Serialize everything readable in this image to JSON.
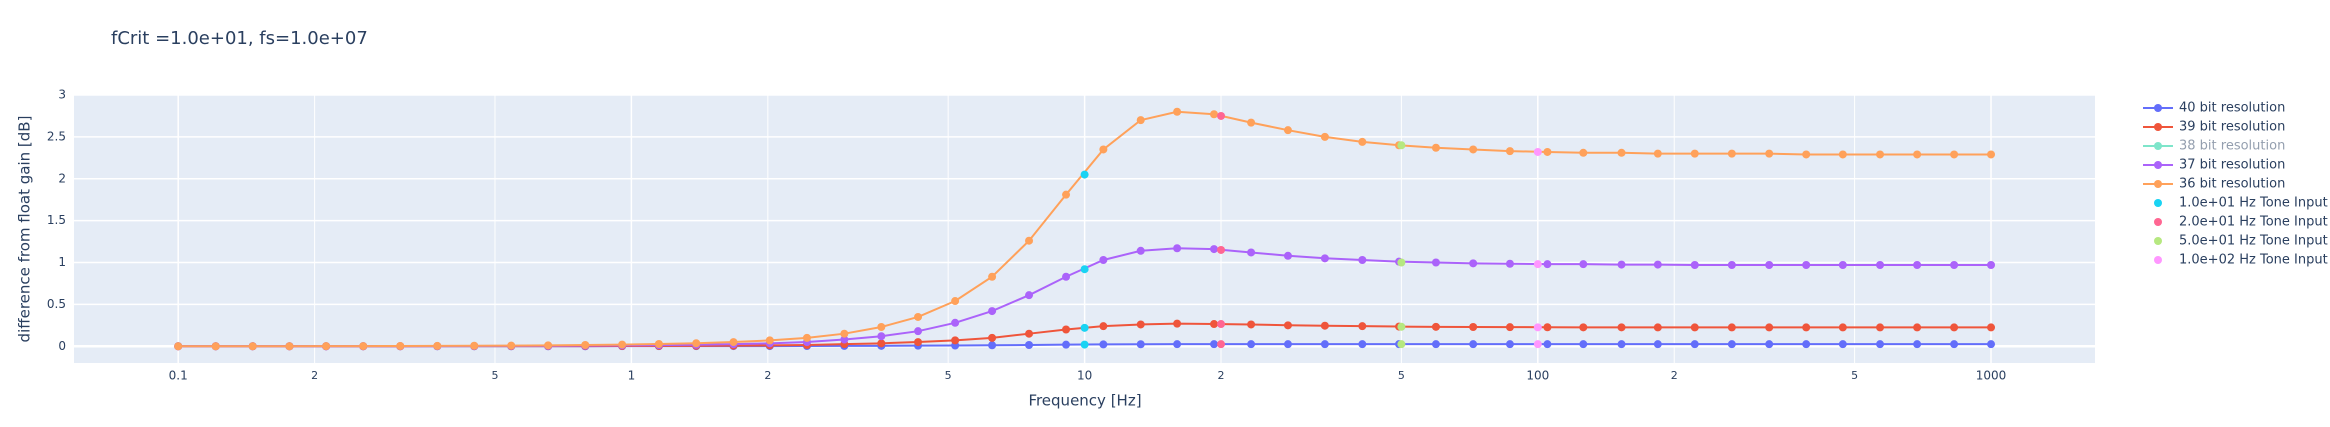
{
  "chart_data": {
    "type": "line",
    "title": "fCrit =1.0e+01, fs=1.0e+07",
    "x_label": "Frequency [Hz]",
    "y_label": "difference from float gain [dB]",
    "xlog": true,
    "grid": true,
    "legend": "right",
    "background": "#e5ecf6",
    "xlim": [
      0.0589,
      1696
    ],
    "ylim": [
      -0.2,
      3.0
    ],
    "xticks": [
      0.1,
      {
        "value": 0.2,
        "label": "2"
      },
      {
        "value": 0.5,
        "label": "5"
      },
      1,
      {
        "value": 2,
        "label": "2"
      },
      {
        "value": 5,
        "label": "5"
      },
      10,
      {
        "value": 20,
        "label": "2"
      },
      {
        "value": 50,
        "label": "5"
      },
      100,
      {
        "value": 200,
        "label": "2"
      },
      {
        "value": 500,
        "label": "5"
      },
      1000
    ],
    "yticks": [
      0,
      0.5,
      1,
      1.5,
      2,
      2.5,
      3
    ],
    "x": [
      0.1,
      0.121,
      0.146,
      0.176,
      0.212,
      0.256,
      0.309,
      0.373,
      0.45,
      0.543,
      0.655,
      0.791,
      0.954,
      1.15,
      1.39,
      1.68,
      2.02,
      2.44,
      2.95,
      3.56,
      4.29,
      5.18,
      6.25,
      7.54,
      9.1,
      11.0,
      13.3,
      16.0,
      19.3,
      23.3,
      28.1,
      33.9,
      41.0,
      49.4,
      59.6,
      72.0,
      86.8,
      105,
      126,
      153,
      184,
      222,
      268,
      324,
      391,
      471,
      569,
      687,
      829,
      1000
    ],
    "series": [
      {
        "name": "40 bit resolution",
        "color": "#636efa",
        "mode": "lines+markers",
        "values": [
          0,
          0,
          0,
          0,
          0,
          0,
          0,
          0,
          0,
          0,
          0,
          0,
          0.001,
          0.001,
          0.001,
          0.002,
          0.002,
          0.003,
          0.004,
          0.005,
          0.007,
          0.009,
          0.012,
          0.015,
          0.019,
          0.022,
          0.024,
          0.025,
          0.025,
          0.025,
          0.025,
          0.025,
          0.025,
          0.025,
          0.025,
          0.025,
          0.025,
          0.025,
          0.025,
          0.025,
          0.025,
          0.025,
          0.025,
          0.025,
          0.025,
          0.025,
          0.025,
          0.025,
          0.025,
          0.025
        ]
      },
      {
        "name": "39 bit resolution",
        "color": "#ef553b",
        "mode": "lines+markers",
        "values": [
          0,
          0,
          0,
          0,
          0,
          0,
          0,
          0.001,
          0.001,
          0.001,
          0.002,
          0.002,
          0.003,
          0.004,
          0.005,
          0.007,
          0.01,
          0.015,
          0.025,
          0.035,
          0.05,
          0.07,
          0.1,
          0.15,
          0.2,
          0.24,
          0.26,
          0.27,
          0.265,
          0.26,
          0.25,
          0.245,
          0.24,
          0.235,
          0.232,
          0.23,
          0.228,
          0.227,
          0.226,
          0.226,
          0.225,
          0.225,
          0.225,
          0.225,
          0.225,
          0.225,
          0.225,
          0.225,
          0.225,
          0.225
        ]
      },
      {
        "name": "38 bit resolution",
        "color": "#00cc96",
        "mode": "lines+markers",
        "visible": "legendonly"
      },
      {
        "name": "37 bit resolution",
        "color": "#ab63fa",
        "mode": "lines+markers",
        "values": [
          0,
          0,
          0,
          0,
          0,
          0.001,
          0.001,
          0.002,
          0.003,
          0.004,
          0.005,
          0.007,
          0.01,
          0.013,
          0.018,
          0.025,
          0.035,
          0.05,
          0.08,
          0.12,
          0.18,
          0.28,
          0.42,
          0.61,
          0.83,
          1.03,
          1.14,
          1.17,
          1.16,
          1.12,
          1.08,
          1.05,
          1.03,
          1.01,
          1.0,
          0.99,
          0.985,
          0.98,
          0.98,
          0.975,
          0.975,
          0.97,
          0.97,
          0.97,
          0.97,
          0.97,
          0.97,
          0.97,
          0.97,
          0.97
        ]
      },
      {
        "name": "36 bit resolution",
        "color": "#ffa15a",
        "mode": "lines+markers",
        "values": [
          0,
          0,
          0,
          0,
          0.001,
          0.002,
          0.003,
          0.004,
          0.006,
          0.008,
          0.011,
          0.015,
          0.02,
          0.027,
          0.036,
          0.05,
          0.07,
          0.1,
          0.15,
          0.23,
          0.35,
          0.54,
          0.83,
          1.26,
          1.81,
          2.35,
          2.7,
          2.8,
          2.77,
          2.67,
          2.58,
          2.5,
          2.44,
          2.4,
          2.37,
          2.35,
          2.33,
          2.32,
          2.31,
          2.31,
          2.3,
          2.3,
          2.3,
          2.3,
          2.29,
          2.29,
          2.29,
          2.29,
          2.29,
          2.29
        ]
      },
      {
        "name": "1.0e+01 Hz Tone Input",
        "color": "#19d3f3",
        "mode": "markers",
        "x": [
          10,
          10,
          10,
          10
        ],
        "values": [
          0.02,
          0.22,
          0.92,
          2.05
        ]
      },
      {
        "name": "2.0e+01 Hz Tone Input",
        "color": "#ff6692",
        "mode": "markers",
        "x": [
          20,
          20,
          20,
          20
        ],
        "values": [
          0.025,
          0.265,
          1.15,
          2.75
        ]
      },
      {
        "name": "5.0e+01 Hz Tone Input",
        "color": "#b6e880",
        "mode": "markers",
        "x": [
          50,
          50,
          50,
          50
        ],
        "values": [
          0.025,
          0.233,
          1.0,
          2.4
        ]
      },
      {
        "name": "1.0e+02 Hz Tone Input",
        "color": "#ff97ff",
        "mode": "markers",
        "x": [
          100,
          100,
          100,
          100
        ],
        "values": [
          0.025,
          0.226,
          0.98,
          2.32
        ]
      }
    ]
  }
}
